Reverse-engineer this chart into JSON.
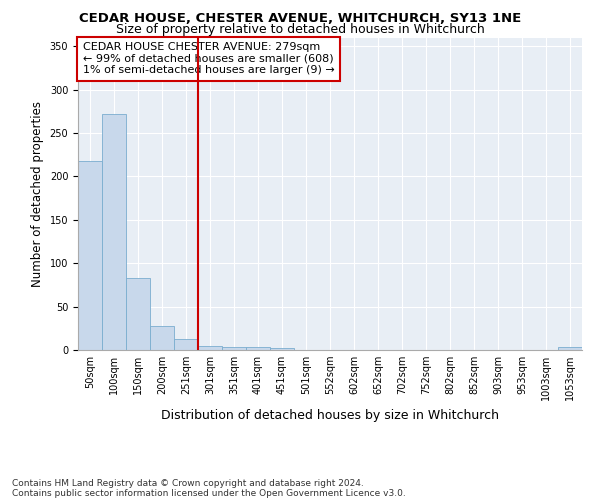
{
  "title": "CEDAR HOUSE, CHESTER AVENUE, WHITCHURCH, SY13 1NE",
  "subtitle": "Size of property relative to detached houses in Whitchurch",
  "xlabel": "Distribution of detached houses by size in Whitchurch",
  "ylabel": "Number of detached properties",
  "categories": [
    "50sqm",
    "100sqm",
    "150sqm",
    "200sqm",
    "251sqm",
    "301sqm",
    "351sqm",
    "401sqm",
    "451sqm",
    "501sqm",
    "552sqm",
    "602sqm",
    "652sqm",
    "702sqm",
    "752sqm",
    "802sqm",
    "852sqm",
    "903sqm",
    "953sqm",
    "1003sqm",
    "1053sqm"
  ],
  "values": [
    218,
    272,
    83,
    28,
    13,
    5,
    4,
    4,
    2,
    0,
    0,
    0,
    0,
    0,
    0,
    0,
    0,
    0,
    0,
    0,
    3
  ],
  "bar_color": "#c8d8eb",
  "bar_edge_color": "#7aadcf",
  "background_color": "#e8eef5",
  "grid_color": "#ffffff",
  "marker_line_index": 5,
  "annotation_text": "CEDAR HOUSE CHESTER AVENUE: 279sqm\n← 99% of detached houses are smaller (608)\n1% of semi-detached houses are larger (9) →",
  "annotation_box_color": "#ffffff",
  "annotation_box_edge_color": "#cc0000",
  "footer_line1": "Contains HM Land Registry data © Crown copyright and database right 2024.",
  "footer_line2": "Contains public sector information licensed under the Open Government Licence v3.0.",
  "ylim": [
    0,
    360
  ],
  "yticks": [
    0,
    50,
    100,
    150,
    200,
    250,
    300,
    350
  ],
  "title_fontsize": 9.5,
  "subtitle_fontsize": 9,
  "ylabel_fontsize": 8.5,
  "xlabel_fontsize": 9,
  "tick_fontsize": 7,
  "annotation_fontsize": 8,
  "footer_fontsize": 6.5
}
